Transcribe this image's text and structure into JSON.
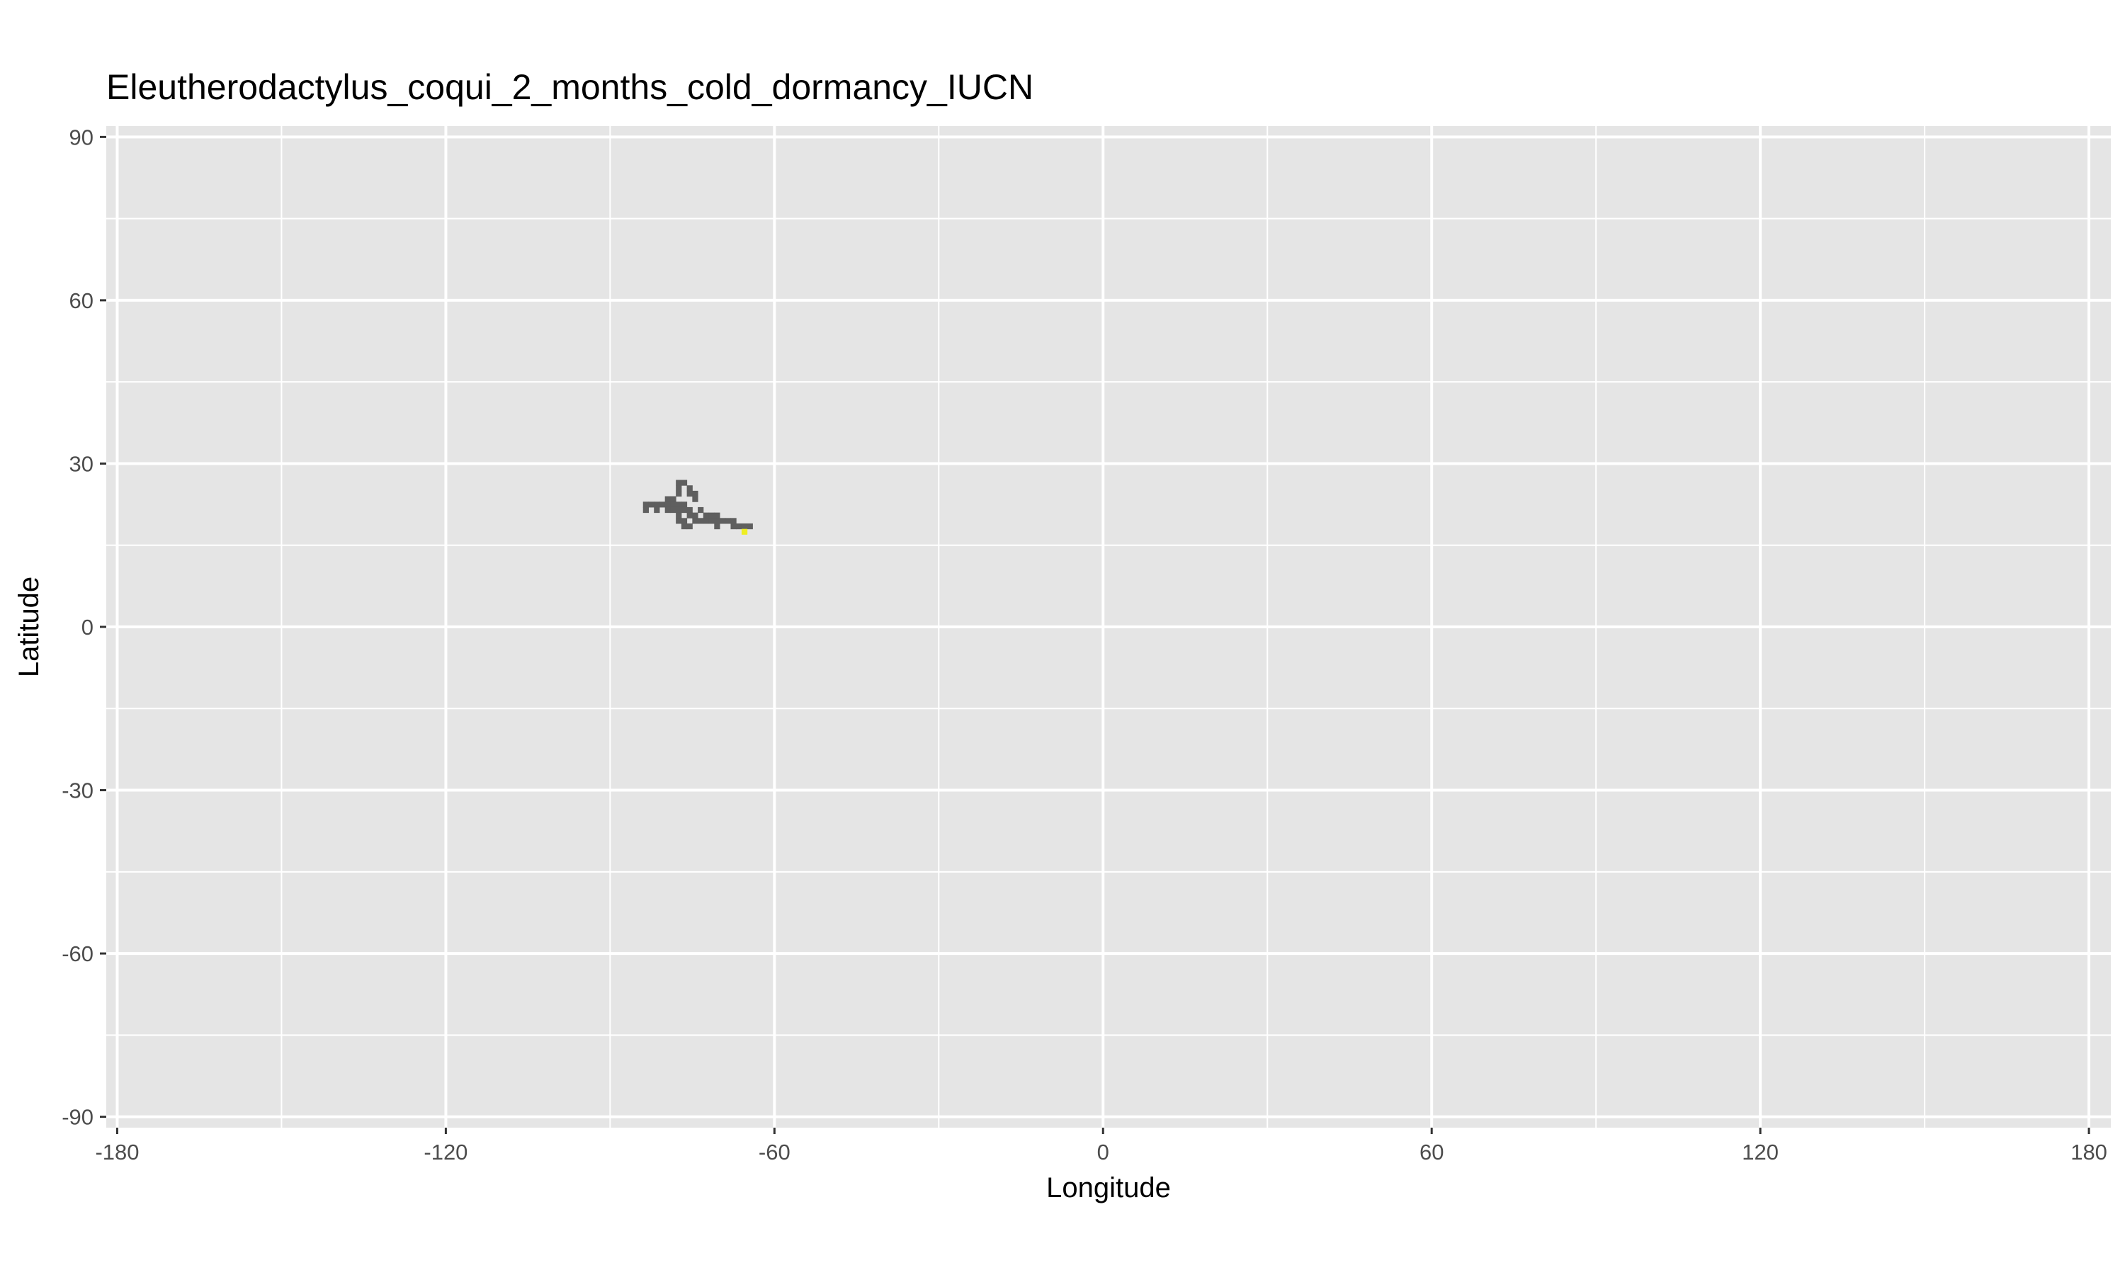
{
  "chart_data": {
    "type": "heatmap",
    "title": "Eleutherodactylus_coqui_2_months_cold_dormancy_IUCN",
    "xlabel": "Longitude",
    "ylabel": "Latitude",
    "xlim": [
      -182,
      184
    ],
    "ylim": [
      -92,
      92
    ],
    "x_ticks": [
      -180,
      -120,
      -60,
      0,
      60,
      120,
      180
    ],
    "y_ticks": [
      -90,
      -60,
      -30,
      0,
      30,
      60,
      90
    ],
    "x_tick_labels": [
      "-180",
      "-120",
      "-60",
      "0",
      "60",
      "120",
      "180"
    ],
    "y_tick_labels": [
      "-90",
      "-60",
      "-30",
      "0",
      "30",
      "60",
      "90"
    ],
    "grid": true,
    "legend": "none",
    "cell_size_deg": 1,
    "colors": {
      "panel_background": "#e5e5e5",
      "grid_major": "#ffffff",
      "range_cell": "#5f5f5f",
      "highlight_cell": "#eeee22"
    },
    "cells": {
      "range": [
        [
          -78,
          26
        ],
        [
          -77,
          26
        ],
        [
          -78,
          25
        ],
        [
          -76,
          25
        ],
        [
          -78,
          24
        ],
        [
          -76,
          24
        ],
        [
          -75,
          24
        ],
        [
          -80,
          23
        ],
        [
          -79,
          23
        ],
        [
          -75,
          23
        ],
        [
          -84,
          22
        ],
        [
          -83,
          22
        ],
        [
          -82,
          22
        ],
        [
          -81,
          22
        ],
        [
          -80,
          22
        ],
        [
          -79,
          22
        ],
        [
          -78,
          22
        ],
        [
          -77,
          22
        ],
        [
          -84,
          21
        ],
        [
          -82,
          21
        ],
        [
          -80,
          21
        ],
        [
          -79,
          21
        ],
        [
          -78,
          21
        ],
        [
          -77,
          21
        ],
        [
          -76,
          21
        ],
        [
          -74,
          21
        ],
        [
          -78,
          20
        ],
        [
          -76,
          20
        ],
        [
          -75,
          20
        ],
        [
          -73,
          20
        ],
        [
          -72,
          20
        ],
        [
          -71,
          20
        ],
        [
          -78,
          19
        ],
        [
          -77,
          19
        ],
        [
          -75,
          19
        ],
        [
          -74,
          19
        ],
        [
          -73,
          19
        ],
        [
          -72,
          19
        ],
        [
          -71,
          19
        ],
        [
          -70,
          19
        ],
        [
          -69,
          19
        ],
        [
          -68,
          19
        ],
        [
          -77,
          18
        ],
        [
          -76,
          18
        ],
        [
          -71,
          18
        ],
        [
          -68,
          18
        ],
        [
          -67,
          18
        ],
        [
          -66,
          18
        ],
        [
          -65,
          18
        ]
      ],
      "highlight": [
        [
          -66,
          17
        ]
      ]
    }
  }
}
